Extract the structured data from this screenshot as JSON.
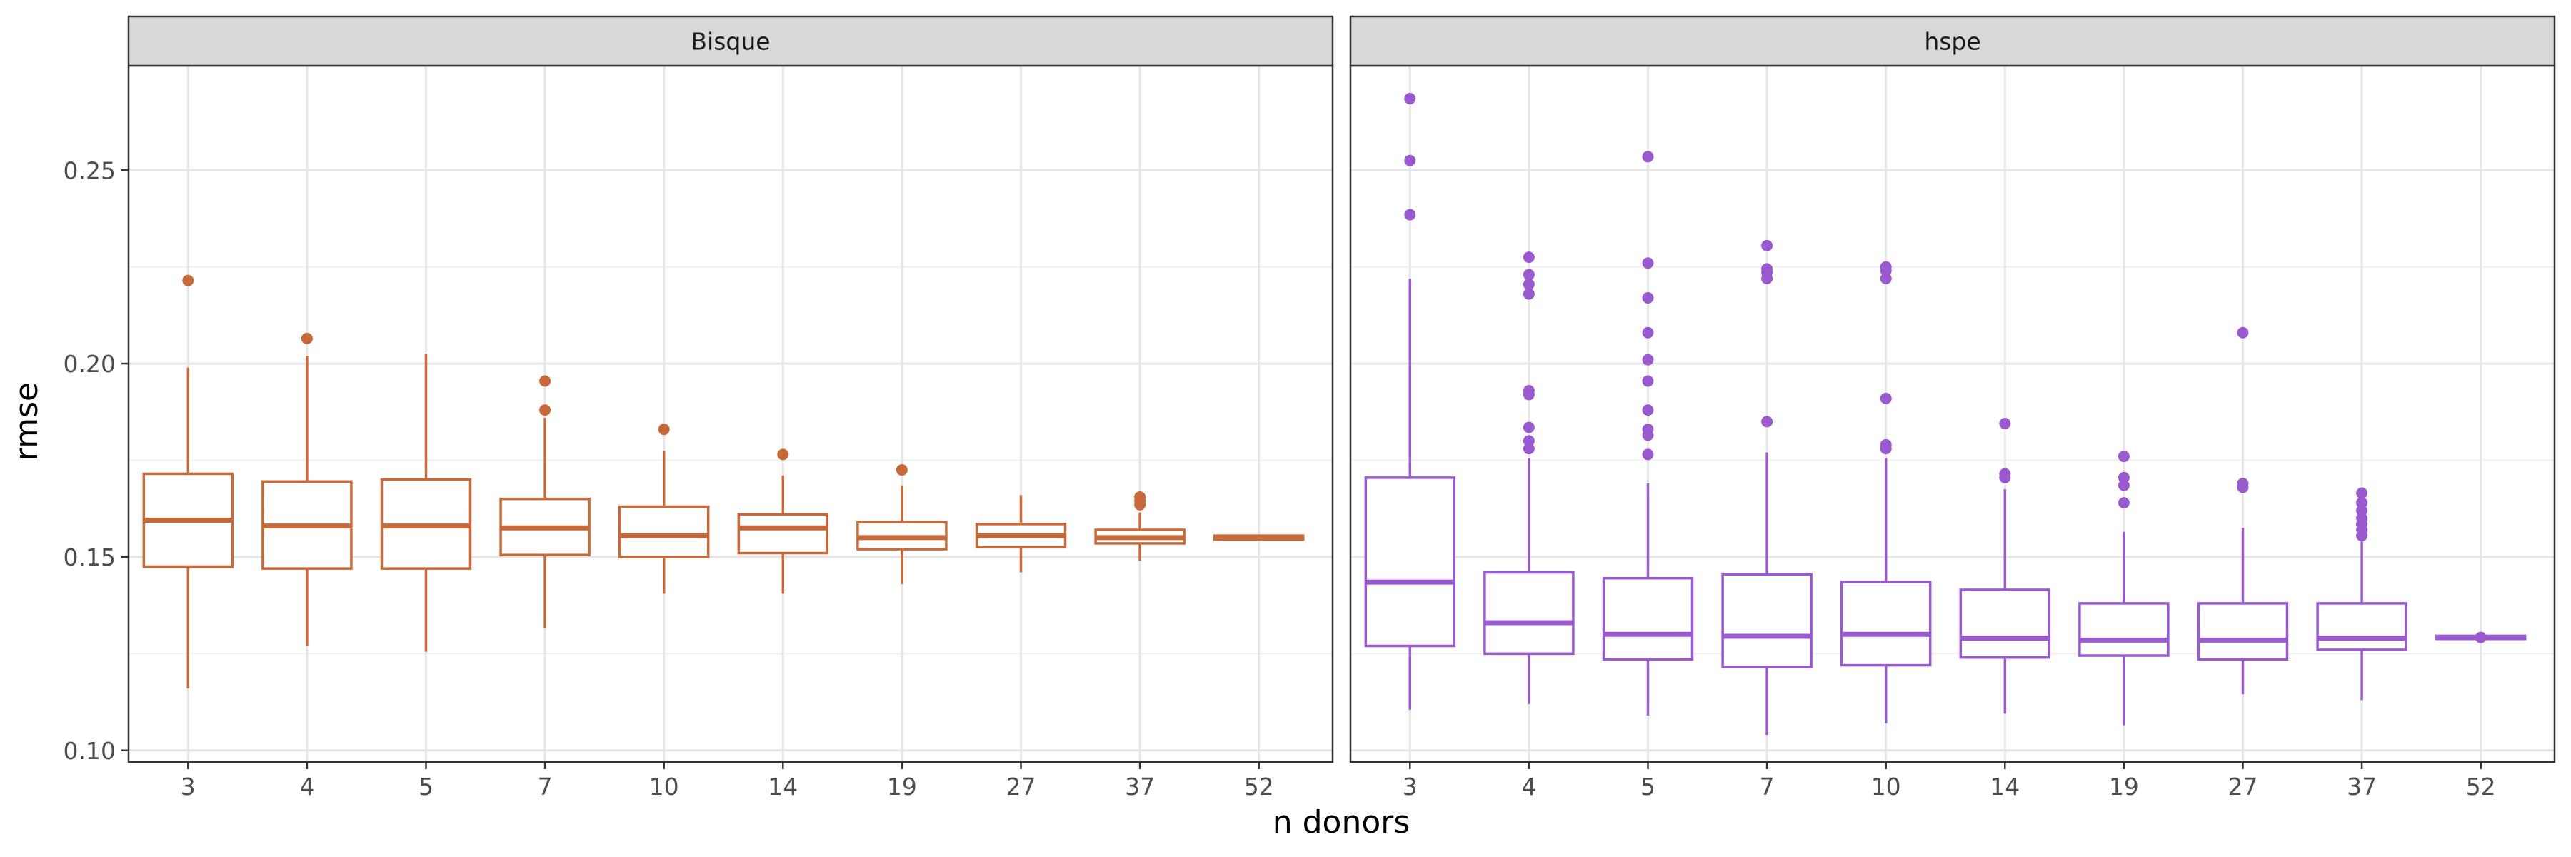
{
  "chart_data": {
    "type": "boxplot",
    "xlabel": "n donors",
    "ylabel": "rmse",
    "ylim": [
      0.097,
      0.277
    ],
    "yticks": [
      0.1,
      0.15,
      0.2,
      0.25
    ],
    "ytick_labels": [
      "0.10",
      "0.15",
      "0.20",
      "0.25"
    ],
    "categories": [
      "3",
      "4",
      "5",
      "7",
      "10",
      "14",
      "19",
      "27",
      "37",
      "52"
    ],
    "grid": true,
    "facets": [
      {
        "name": "Bisque",
        "color": "#c8693a",
        "boxes": [
          {
            "q1": 0.1475,
            "median": 0.1595,
            "q3": 0.1715,
            "whisker_low": 0.116,
            "whisker_high": 0.199,
            "outliers": [
              0.2215
            ]
          },
          {
            "q1": 0.147,
            "median": 0.158,
            "q3": 0.1695,
            "whisker_low": 0.127,
            "whisker_high": 0.202,
            "outliers": [
              0.2065
            ]
          },
          {
            "q1": 0.147,
            "median": 0.158,
            "q3": 0.17,
            "whisker_low": 0.1255,
            "whisker_high": 0.2025,
            "outliers": []
          },
          {
            "q1": 0.1505,
            "median": 0.1575,
            "q3": 0.165,
            "whisker_low": 0.1315,
            "whisker_high": 0.186,
            "outliers": [
              0.188,
              0.1955
            ]
          },
          {
            "q1": 0.15,
            "median": 0.1555,
            "q3": 0.163,
            "whisker_low": 0.1405,
            "whisker_high": 0.1775,
            "outliers": [
              0.183
            ]
          },
          {
            "q1": 0.151,
            "median": 0.1575,
            "q3": 0.161,
            "whisker_low": 0.1405,
            "whisker_high": 0.171,
            "outliers": [
              0.1765
            ]
          },
          {
            "q1": 0.152,
            "median": 0.155,
            "q3": 0.159,
            "whisker_low": 0.143,
            "whisker_high": 0.1685,
            "outliers": [
              0.1725
            ]
          },
          {
            "q1": 0.1525,
            "median": 0.1555,
            "q3": 0.1585,
            "whisker_low": 0.146,
            "whisker_high": 0.166,
            "outliers": []
          },
          {
            "q1": 0.1535,
            "median": 0.155,
            "q3": 0.157,
            "whisker_low": 0.149,
            "whisker_high": 0.1615,
            "outliers": [
              0.1635,
              0.1645,
              0.1655
            ]
          },
          {
            "q1": 0.1545,
            "median": 0.155,
            "q3": 0.1555,
            "whisker_low": 0.1545,
            "whisker_high": 0.1555,
            "outliers": []
          }
        ]
      },
      {
        "name": "hspe",
        "color": "#9b59d0",
        "boxes": [
          {
            "q1": 0.127,
            "median": 0.1435,
            "q3": 0.1705,
            "whisker_low": 0.1105,
            "whisker_high": 0.222,
            "outliers": [
              0.2385,
              0.2525,
              0.2685
            ]
          },
          {
            "q1": 0.125,
            "median": 0.133,
            "q3": 0.146,
            "whisker_low": 0.112,
            "whisker_high": 0.1755,
            "outliers": [
              0.178,
              0.18,
              0.1835,
              0.192,
              0.193,
              0.218,
              0.2205,
              0.223,
              0.2275
            ]
          },
          {
            "q1": 0.1235,
            "median": 0.13,
            "q3": 0.1445,
            "whisker_low": 0.109,
            "whisker_high": 0.169,
            "outliers": [
              0.1765,
              0.1815,
              0.183,
              0.188,
              0.1955,
              0.201,
              0.208,
              0.217,
              0.226,
              0.2535
            ]
          },
          {
            "q1": 0.1215,
            "median": 0.1295,
            "q3": 0.1455,
            "whisker_low": 0.104,
            "whisker_high": 0.177,
            "outliers": [
              0.185,
              0.222,
              0.2235,
              0.2245,
              0.2305
            ]
          },
          {
            "q1": 0.122,
            "median": 0.13,
            "q3": 0.1435,
            "whisker_low": 0.107,
            "whisker_high": 0.1755,
            "outliers": [
              0.178,
              0.179,
              0.191,
              0.222,
              0.224,
              0.225
            ]
          },
          {
            "q1": 0.124,
            "median": 0.129,
            "q3": 0.1415,
            "whisker_low": 0.1095,
            "whisker_high": 0.1675,
            "outliers": [
              0.1705,
              0.1715,
              0.1845
            ]
          },
          {
            "q1": 0.1245,
            "median": 0.1285,
            "q3": 0.138,
            "whisker_low": 0.1065,
            "whisker_high": 0.1565,
            "outliers": [
              0.164,
              0.1685,
              0.1705,
              0.176
            ]
          },
          {
            "q1": 0.1235,
            "median": 0.1285,
            "q3": 0.138,
            "whisker_low": 0.1145,
            "whisker_high": 0.1575,
            "outliers": [
              0.168,
              0.169,
              0.208
            ]
          },
          {
            "q1": 0.126,
            "median": 0.129,
            "q3": 0.138,
            "whisker_low": 0.113,
            "whisker_high": 0.154,
            "outliers": [
              0.1555,
              0.157,
              0.1585,
              0.16,
              0.162,
              0.164,
              0.1665
            ]
          },
          {
            "q1": 0.1288,
            "median": 0.1292,
            "q3": 0.1296,
            "whisker_low": 0.1285,
            "whisker_high": 0.13,
            "outliers": [
              0.1292
            ]
          }
        ]
      }
    ]
  }
}
